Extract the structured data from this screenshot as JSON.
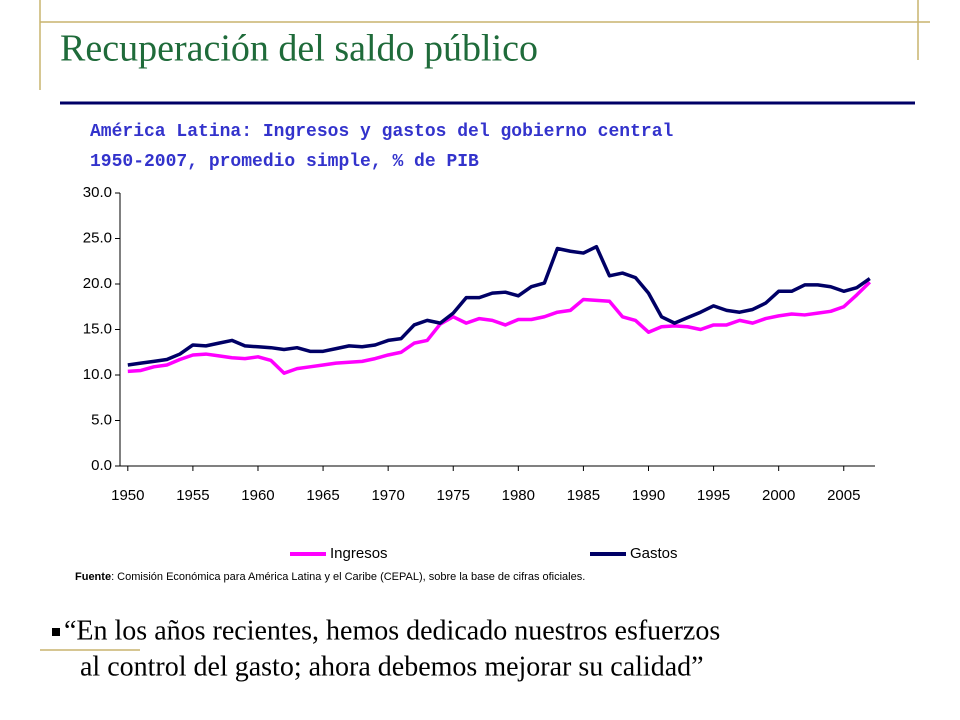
{
  "slide_title": "Recuperación del saldo público",
  "source": {
    "label": "Fuente",
    "text": ": Comisión Económica para América Latina y el Caribe (CEPAL), sobre la base de cifras oficiales."
  },
  "quote": [
    "“En los años recientes, hemos dedicado nuestros esfuerzos",
    "al control del gasto; ahora debemos mejorar su calidad”"
  ],
  "chart_data": {
    "type": "line",
    "title": [
      "América Latina: Ingresos y gastos del gobierno central",
      "1950-2007, promedio simple, % de PIB"
    ],
    "x": [
      1950,
      1951,
      1952,
      1953,
      1954,
      1955,
      1956,
      1957,
      1958,
      1959,
      1960,
      1961,
      1962,
      1963,
      1964,
      1965,
      1966,
      1967,
      1968,
      1969,
      1970,
      1971,
      1972,
      1973,
      1974,
      1975,
      1976,
      1977,
      1978,
      1979,
      1980,
      1981,
      1982,
      1983,
      1984,
      1985,
      1986,
      1987,
      1988,
      1989,
      1990,
      1991,
      1992,
      1993,
      1994,
      1995,
      1996,
      1997,
      1998,
      1999,
      2000,
      2001,
      2002,
      2003,
      2004,
      2005,
      2006,
      2007
    ],
    "series": [
      {
        "name": "Ingresos",
        "color": "#ff00ff",
        "values": [
          10.4,
          10.5,
          10.9,
          11.1,
          11.7,
          12.2,
          12.3,
          12.1,
          11.9,
          11.8,
          12.0,
          11.6,
          10.2,
          10.7,
          10.9,
          11.1,
          11.3,
          11.4,
          11.5,
          11.8,
          12.2,
          12.5,
          13.5,
          13.8,
          15.6,
          16.4,
          15.7,
          16.2,
          16.0,
          15.5,
          16.1,
          16.1,
          16.4,
          16.9,
          17.1,
          18.3,
          18.2,
          18.1,
          16.4,
          16.0,
          14.7,
          15.3,
          15.4,
          15.3,
          15.0,
          15.5,
          15.5,
          16.0,
          15.7,
          16.2,
          16.5,
          16.7,
          16.6,
          16.8,
          17.0,
          17.5,
          18.8,
          20.2
        ]
      },
      {
        "name": "Gastos",
        "color": "#000066",
        "values": [
          11.1,
          11.3,
          11.5,
          11.7,
          12.3,
          13.3,
          13.2,
          13.5,
          13.8,
          13.2,
          13.1,
          13.0,
          12.8,
          13.0,
          12.6,
          12.6,
          12.9,
          13.2,
          13.1,
          13.3,
          13.8,
          14.0,
          15.5,
          16.0,
          15.7,
          16.8,
          18.5,
          18.5,
          19.0,
          19.1,
          18.7,
          19.7,
          20.1,
          23.9,
          23.6,
          23.4,
          24.1,
          20.9,
          21.2,
          20.7,
          19.0,
          16.4,
          15.7,
          16.3,
          16.9,
          17.6,
          17.1,
          16.9,
          17.2,
          17.9,
          19.2,
          19.2,
          19.9,
          19.9,
          19.7,
          19.2,
          19.6,
          20.6
        ]
      }
    ],
    "xlim": [
      1949.4,
      2007.4
    ],
    "xticks": [
      1950,
      1955,
      1960,
      1965,
      1970,
      1975,
      1980,
      1985,
      1990,
      1995,
      2000,
      2005
    ],
    "ylim": [
      0,
      30
    ],
    "yticks": [
      {
        "value": 0,
        "label": "0.0"
      },
      {
        "value": 5,
        "label": "5.0"
      },
      {
        "value": 10,
        "label": "10.0"
      },
      {
        "value": 15,
        "label": "15.0"
      },
      {
        "value": 20,
        "label": "20.0"
      },
      {
        "value": 25,
        "label": "25.0"
      },
      {
        "value": 30,
        "label": "30.0"
      }
    ],
    "legend": "bottom"
  }
}
